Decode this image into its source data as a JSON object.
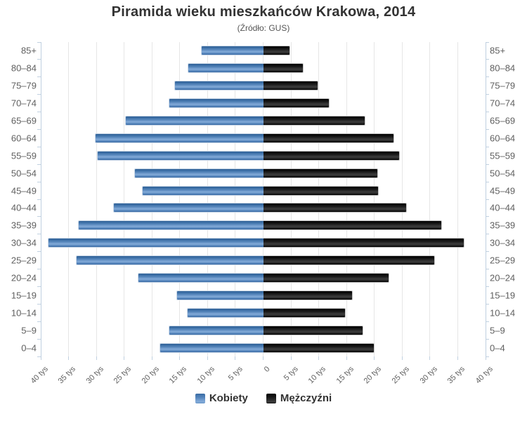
{
  "title": "Piramida wieku mieszkańców Krakowa, 2014",
  "subtitle": "(Źródło: GUS)",
  "legend": {
    "items": [
      {
        "label": "Kobiety",
        "color": "#4d80b6"
      },
      {
        "label": "Mężczyźni",
        "color": "#1a1a1a"
      }
    ],
    "position": "bottom"
  },
  "colors": {
    "kobiety_bar": "#4d80b6",
    "mezczyzni_bar": "#1a1a1a",
    "gridline": "#e6e6e6",
    "axis_and_ticks": "#c0d0e0",
    "axis_label_text": "#606060",
    "title_text": "#333333",
    "background": "#ffffff"
  },
  "chart_data": {
    "type": "bar",
    "variant": "population-pyramid",
    "title": "Piramida wieku mieszkańców Krakowa, 2014",
    "subtitle": "(Źródło: GUS)",
    "unit": "tys",
    "categories": [
      "85+",
      "80–84",
      "75–79",
      "70–74",
      "65–69",
      "60–64",
      "55–59",
      "50–54",
      "45–49",
      "40–44",
      "35–39",
      "30–34",
      "25–29",
      "20–24",
      "15–19",
      "10–14",
      "5–9",
      "0–4"
    ],
    "categories_order": "oldest-at-top",
    "series": [
      {
        "name": "Kobiety",
        "side": "left",
        "color": "#4d80b6",
        "values": [
          11.0,
          13.4,
          15.9,
          16.9,
          24.7,
          30.1,
          29.8,
          23.1,
          21.7,
          26.8,
          33.2,
          38.6,
          33.6,
          22.4,
          15.5,
          13.6,
          16.9,
          18.5
        ]
      },
      {
        "name": "Mężczyźni",
        "side": "right",
        "color": "#1a1a1a",
        "values": [
          4.7,
          7.2,
          9.8,
          11.8,
          18.2,
          23.5,
          24.5,
          20.6,
          20.7,
          25.7,
          32.1,
          36.1,
          30.8,
          22.5,
          16.0,
          14.7,
          17.9,
          19.9
        ]
      }
    ],
    "xlim_each_side": [
      0,
      40
    ],
    "tick_interval": 5,
    "x_tick_labels": [
      "40 tys",
      "35 tys",
      "30 tys",
      "25 tys",
      "20 tys",
      "15 tys",
      "10 tys",
      "5 tys",
      "0",
      "5 tys",
      "10 tys",
      "15 tys",
      "20 tys",
      "25 tys",
      "30 tys",
      "35 tys",
      "40 tys"
    ],
    "grid": true,
    "legend_position": "bottom"
  }
}
